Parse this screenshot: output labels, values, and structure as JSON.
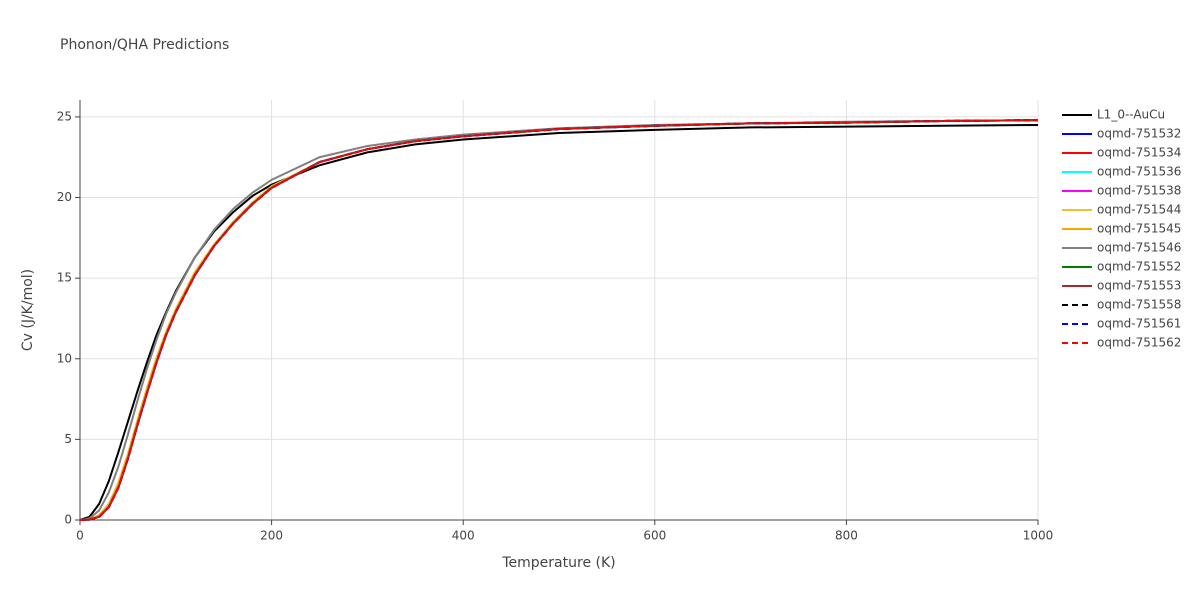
{
  "chart_data": {
    "type": "line",
    "title": "Phonon/QHA Predictions",
    "x_label": "Temperature (K)",
    "y_label": "Cv (J/K/mol)",
    "xlim": [
      0,
      1000
    ],
    "ylim": [
      0,
      26.05
    ],
    "xticks": [
      0,
      200,
      400,
      600,
      800,
      1000
    ],
    "yticks": [
      0,
      5,
      10,
      15,
      20,
      25
    ],
    "grid": true,
    "x": [
      0,
      10,
      20,
      30,
      40,
      50,
      60,
      70,
      80,
      90,
      100,
      120,
      140,
      160,
      180,
      200,
      250,
      300,
      350,
      400,
      500,
      600,
      700,
      800,
      900,
      1000
    ],
    "series": [
      {
        "name": "L1_0--AuCu",
        "color": "#000000",
        "dash": false,
        "values": [
          0,
          0.2,
          1.0,
          2.4,
          4.2,
          6.1,
          8.0,
          9.8,
          11.5,
          12.9,
          14.2,
          16.3,
          17.9,
          19.1,
          20.1,
          20.8,
          22.0,
          22.8,
          23.3,
          23.6,
          24.0,
          24.2,
          24.35,
          24.4,
          24.45,
          24.5
        ]
      },
      {
        "name": "oqmd-751532",
        "color": "#0000ff",
        "dash": false,
        "values": [
          0,
          0.02,
          0.2,
          0.8,
          2.0,
          3.8,
          5.9,
          7.9,
          9.8,
          11.5,
          12.9,
          15.2,
          17.0,
          18.4,
          19.6,
          20.6,
          22.2,
          23.0,
          23.5,
          23.8,
          24.25,
          24.45,
          24.6,
          24.65,
          24.75,
          24.8
        ]
      },
      {
        "name": "oqmd-751534",
        "color": "#ff0000",
        "dash": false,
        "values": [
          0,
          0.02,
          0.2,
          0.8,
          2.0,
          3.8,
          5.9,
          7.9,
          9.8,
          11.5,
          12.9,
          15.2,
          17.0,
          18.4,
          19.6,
          20.6,
          22.2,
          23.0,
          23.5,
          23.8,
          24.25,
          24.45,
          24.6,
          24.65,
          24.75,
          24.8
        ]
      },
      {
        "name": "oqmd-751536",
        "color": "#00ffff",
        "dash": false,
        "values": [
          0,
          0.02,
          0.2,
          0.8,
          2.0,
          3.8,
          5.9,
          7.9,
          9.8,
          11.5,
          12.9,
          15.2,
          17.0,
          18.4,
          19.6,
          20.6,
          22.2,
          23.0,
          23.5,
          23.8,
          24.25,
          24.45,
          24.6,
          24.65,
          24.75,
          24.8
        ]
      },
      {
        "name": "oqmd-751538",
        "color": "#ff00ff",
        "dash": false,
        "values": [
          0,
          0.02,
          0.2,
          0.8,
          2.0,
          3.8,
          5.9,
          7.9,
          9.8,
          11.5,
          12.9,
          15.2,
          17.0,
          18.4,
          19.6,
          20.6,
          22.2,
          23.0,
          23.5,
          23.8,
          24.25,
          24.45,
          24.6,
          24.65,
          24.75,
          24.8
        ]
      },
      {
        "name": "oqmd-751544",
        "color": "#f0c030",
        "dash": false,
        "values": [
          0,
          0.03,
          0.3,
          1.0,
          2.3,
          4.1,
          6.2,
          8.2,
          10.1,
          11.7,
          13.1,
          15.4,
          17.1,
          18.5,
          19.7,
          20.7,
          22.2,
          23.0,
          23.5,
          23.8,
          24.25,
          24.45,
          24.6,
          24.65,
          24.75,
          24.8
        ]
      },
      {
        "name": "oqmd-751545",
        "color": "#ffa500",
        "dash": false,
        "values": [
          0,
          0.03,
          0.25,
          0.9,
          2.2,
          4.0,
          6.1,
          8.1,
          10.0,
          11.6,
          13.0,
          15.3,
          17.05,
          18.45,
          19.65,
          20.65,
          22.2,
          23.0,
          23.5,
          23.8,
          24.25,
          24.45,
          24.6,
          24.65,
          24.75,
          24.8
        ]
      },
      {
        "name": "oqmd-751546",
        "color": "#808080",
        "dash": false,
        "values": [
          0,
          0.1,
          0.6,
          1.7,
          3.3,
          5.3,
          7.4,
          9.4,
          11.2,
          12.8,
          14.1,
          16.3,
          18.0,
          19.3,
          20.3,
          21.1,
          22.5,
          23.2,
          23.6,
          23.9,
          24.3,
          24.5,
          24.6,
          24.7,
          24.75,
          24.8
        ]
      },
      {
        "name": "oqmd-751552",
        "color": "#008000",
        "dash": false,
        "values": [
          0,
          0.02,
          0.2,
          0.8,
          2.0,
          3.8,
          5.9,
          7.9,
          9.8,
          11.5,
          12.9,
          15.2,
          17.0,
          18.4,
          19.6,
          20.6,
          22.2,
          23.0,
          23.5,
          23.8,
          24.25,
          24.45,
          24.6,
          24.65,
          24.75,
          24.8
        ]
      },
      {
        "name": "oqmd-751553",
        "color": "#a52a2a",
        "dash": false,
        "values": [
          0,
          0.02,
          0.2,
          0.8,
          2.0,
          3.8,
          5.9,
          7.9,
          9.8,
          11.5,
          12.9,
          15.2,
          17.0,
          18.4,
          19.6,
          20.6,
          22.2,
          23.0,
          23.5,
          23.8,
          24.25,
          24.45,
          24.6,
          24.65,
          24.75,
          24.8
        ]
      },
      {
        "name": "oqmd-751558",
        "color": "#000000",
        "dash": true,
        "values": [
          0,
          0.02,
          0.2,
          0.8,
          2.0,
          3.8,
          5.9,
          7.9,
          9.8,
          11.5,
          12.9,
          15.2,
          17.0,
          18.4,
          19.6,
          20.6,
          22.2,
          23.0,
          23.5,
          23.8,
          24.25,
          24.45,
          24.6,
          24.65,
          24.75,
          24.8
        ]
      },
      {
        "name": "oqmd-751561",
        "color": "#0000ff",
        "dash": true,
        "values": [
          0,
          0.02,
          0.2,
          0.8,
          2.0,
          3.8,
          5.9,
          7.9,
          9.8,
          11.5,
          12.9,
          15.2,
          17.0,
          18.4,
          19.6,
          20.6,
          22.2,
          23.0,
          23.5,
          23.8,
          24.25,
          24.45,
          24.6,
          24.65,
          24.75,
          24.8
        ]
      },
      {
        "name": "oqmd-751562",
        "color": "#ff0000",
        "dash": true,
        "values": [
          0,
          0.02,
          0.2,
          0.8,
          2.0,
          3.8,
          5.9,
          7.9,
          9.8,
          11.5,
          12.9,
          15.2,
          17.0,
          18.4,
          19.6,
          20.6,
          22.2,
          23.0,
          23.5,
          23.8,
          24.25,
          24.45,
          24.6,
          24.65,
          24.75,
          24.8
        ]
      }
    ]
  }
}
